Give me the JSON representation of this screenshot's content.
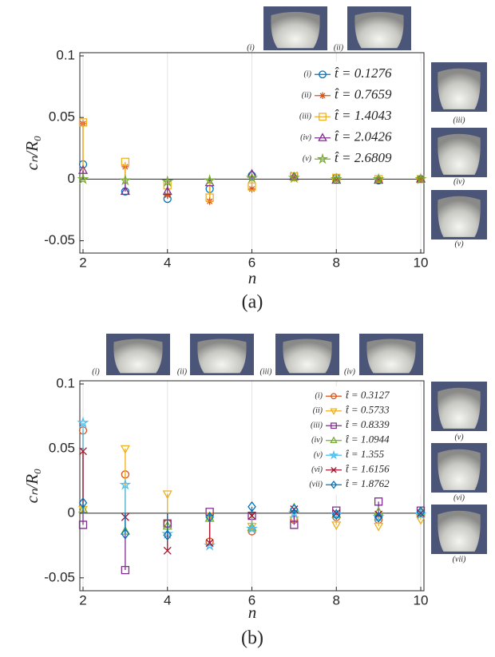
{
  "chart_data": [
    {
      "type": "stem",
      "caption": "(a)",
      "xlabel": "n",
      "ylabel": "cₙ/R₀",
      "x": [
        2,
        3,
        4,
        5,
        6,
        7,
        8,
        9,
        10
      ],
      "xlim": [
        2,
        10
      ],
      "xticks": [
        2,
        4,
        6,
        8,
        10
      ],
      "ylim": [
        -0.06,
        0.1
      ],
      "yticks": [
        0.1,
        0.05,
        0,
        -0.05
      ],
      "grid": "x",
      "insets": [
        "(i)",
        "(ii)",
        "(iii)",
        "(iv)",
        "(v)"
      ],
      "series": [
        {
          "label": "(i)",
          "name": "t̂ = 0.1276",
          "color": "#0072BD",
          "marker": "circle",
          "values": [
            0.012,
            -0.01,
            -0.016,
            -0.008,
            0.003,
            0.004,
            0.001,
            -0.001,
            0
          ]
        },
        {
          "label": "(ii)",
          "name": "t̂ = 0.7659",
          "color": "#D95319",
          "marker": "asterisk",
          "values": [
            0.045,
            0.01,
            -0.013,
            -0.018,
            -0.008,
            0.001,
            0,
            -0.001,
            0
          ]
        },
        {
          "label": "(iii)",
          "name": "t̂ = 1.4043",
          "color": "#EDB120",
          "marker": "square",
          "values": [
            0.046,
            0.014,
            -0.005,
            -0.015,
            -0.006,
            0.002,
            0.001,
            0,
            0
          ]
        },
        {
          "label": "(iv)",
          "name": "t̂ = 2.0426",
          "color": "#7E2F8E",
          "marker": "triangle-up",
          "values": [
            0.007,
            -0.01,
            -0.01,
            -0.003,
            0.004,
            0.002,
            -0.001,
            -0.001,
            0
          ]
        },
        {
          "label": "(v)",
          "name": "t̂ = 2.6809",
          "color": "#77AC30",
          "marker": "star",
          "values": [
            0,
            -0.001,
            -0.002,
            -0.001,
            0.001,
            0.001,
            0,
            0,
            0
          ]
        }
      ]
    },
    {
      "type": "stem",
      "caption": "(b)",
      "xlabel": "n",
      "ylabel": "cₙ/R₀",
      "x": [
        2,
        3,
        4,
        5,
        6,
        7,
        8,
        9,
        10
      ],
      "xlim": [
        2,
        10
      ],
      "xticks": [
        2,
        4,
        6,
        8,
        10
      ],
      "ylim": [
        -0.06,
        0.1
      ],
      "yticks": [
        0.1,
        0.05,
        0,
        -0.05
      ],
      "grid": "x",
      "insets": [
        "(i)",
        "(ii)",
        "(iii)",
        "(iv)",
        "(v)",
        "(vi)",
        "(vii)"
      ],
      "series": [
        {
          "label": "(i)",
          "name": "t̂ = 0.3127",
          "color": "#D95319",
          "marker": "circle",
          "values": [
            0.064,
            0.03,
            -0.008,
            -0.022,
            -0.014,
            -0.005,
            -0.003,
            -0.005,
            0
          ]
        },
        {
          "label": "(ii)",
          "name": "t̂ = 0.5733",
          "color": "#EDB120",
          "marker": "triangle-down",
          "values": [
            0.003,
            0.05,
            0.015,
            -0.002,
            -0.01,
            -0.005,
            -0.009,
            -0.01,
            -0.005
          ]
        },
        {
          "label": "(iii)",
          "name": "t̂ = 0.8339",
          "color": "#7E2F8E",
          "marker": "square",
          "values": [
            -0.009,
            -0.044,
            -0.008,
            0.001,
            -0.002,
            -0.009,
            0.002,
            0.009,
            0.002
          ]
        },
        {
          "label": "(iv)",
          "name": "t̂ = 1.0944",
          "color": "#77AC30",
          "marker": "triangle-up",
          "values": [
            0.003,
            -0.014,
            -0.01,
            -0.004,
            -0.011,
            0.004,
            -0.001,
            0.001,
            0.001
          ]
        },
        {
          "label": "(v)",
          "name": "t̂ = 1.355",
          "color": "#4DBEEE",
          "marker": "star",
          "values": [
            0.07,
            0.022,
            -0.016,
            -0.025,
            -0.012,
            0,
            -0.001,
            -0.003,
            -0.001
          ]
        },
        {
          "label": "(vi)",
          "name": "t̂ = 1.6156",
          "color": "#A2142F",
          "marker": "x",
          "values": [
            0.048,
            -0.003,
            -0.029,
            -0.023,
            -0.002,
            0.003,
            0,
            -0.001,
            0
          ]
        },
        {
          "label": "(vii)",
          "name": "t̂ = 1.8762",
          "color": "#0072BD",
          "marker": "diamond",
          "values": [
            0.008,
            -0.016,
            -0.017,
            -0.003,
            0.005,
            0.003,
            -0.001,
            -0.003,
            0.001
          ]
        }
      ]
    }
  ]
}
